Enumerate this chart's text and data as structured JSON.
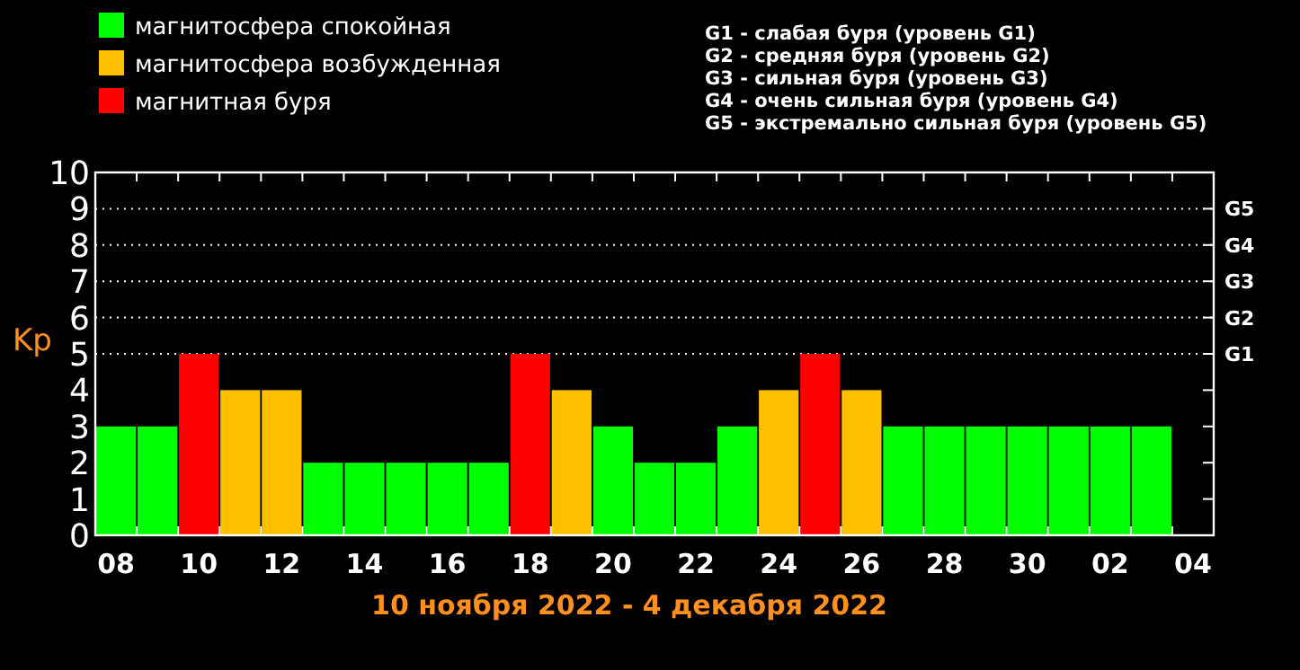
{
  "chart_data": {
    "type": "bar",
    "xlabel": "10 ноября 2022 - 4 декабря 2022",
    "ylabel": "Kp",
    "categories": [
      "08",
      null,
      "10",
      null,
      "12",
      null,
      "14",
      null,
      "16",
      null,
      "18",
      null,
      "20",
      null,
      "22",
      null,
      "24",
      null,
      "26",
      null,
      "28",
      null,
      "30",
      null,
      "02",
      null,
      "04"
    ],
    "series": [
      {
        "name": "магнитосфера спокойная",
        "color": "#00ff00",
        "values": [
          3,
          3,
          null,
          null,
          null,
          2,
          2,
          2,
          2,
          2,
          null,
          null,
          3,
          2,
          2,
          3,
          null,
          null,
          null,
          3,
          3,
          3,
          3,
          3,
          3,
          3,
          null
        ]
      },
      {
        "name": "магнитосфера возбужденная",
        "color": "#ffc000",
        "values": [
          null,
          null,
          null,
          4,
          4,
          null,
          null,
          null,
          null,
          null,
          null,
          4,
          null,
          null,
          null,
          null,
          4,
          null,
          4,
          null,
          null,
          null,
          null,
          null,
          null,
          null,
          null
        ]
      },
      {
        "name": "магнитная буря",
        "color": "#ff0000",
        "values": [
          null,
          null,
          5,
          null,
          null,
          null,
          null,
          null,
          null,
          null,
          5,
          null,
          null,
          null,
          null,
          null,
          null,
          5,
          null,
          null,
          null,
          null,
          null,
          null,
          null,
          null,
          null
        ]
      }
    ],
    "ylim": [
      0,
      10
    ],
    "yticks": [
      0,
      1,
      2,
      3,
      4,
      5,
      6,
      7,
      8,
      9,
      10
    ],
    "ref_lines": [
      {
        "axis": "y",
        "value": 5,
        "label": "G1",
        "color": "#ffffff",
        "line_style": "dotted"
      },
      {
        "axis": "y",
        "value": 6,
        "label": "G2",
        "color": "#ffffff",
        "line_style": "dotted"
      },
      {
        "axis": "y",
        "value": 7,
        "label": "G3",
        "color": "#ffffff",
        "line_style": "dotted"
      },
      {
        "axis": "y",
        "value": 8,
        "label": "G4",
        "color": "#ffffff",
        "line_style": "dotted"
      },
      {
        "axis": "y",
        "value": 9,
        "label": "G5",
        "color": "#ffffff",
        "line_style": "dotted"
      }
    ],
    "legend": "top left",
    "annotations": [
      "G1 - слабая буря (уровень G1)",
      "G2 - средняя буря (уровень G2)",
      "G3 - сильная буря (уровень G3)",
      "G4 - очень сильная буря (уровень G4)",
      "G5 - экстремально сильная буря (уровень G5)"
    ]
  }
}
